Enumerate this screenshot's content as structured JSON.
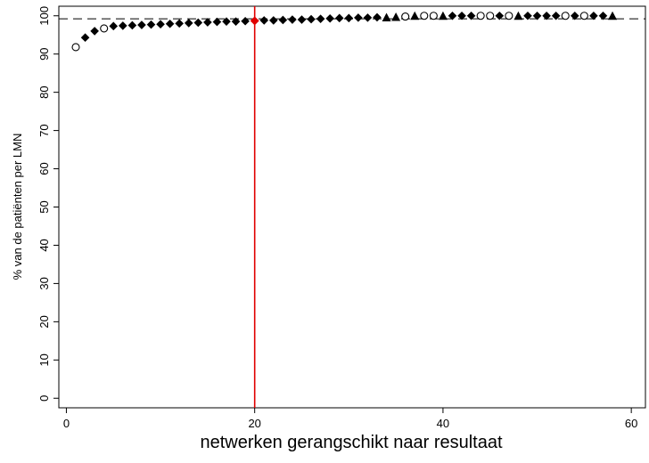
{
  "chart_data": {
    "type": "scatter",
    "title": "",
    "xlabel": "netwerken gerangschikt naar resultaat",
    "ylabel": "% van de patiënten per LMN",
    "xlim": [
      -0.8,
      61.5
    ],
    "ylim": [
      -2.5,
      102.5
    ],
    "x_ticks": [
      0,
      20,
      40,
      60
    ],
    "y_ticks": [
      0,
      10,
      20,
      30,
      40,
      50,
      60,
      70,
      80,
      90,
      100
    ],
    "grid": false,
    "legend": "none",
    "reference_line": {
      "axis": "y",
      "value": 99.2,
      "style": "dashed",
      "color": "#000000"
    },
    "highlight_line": {
      "axis": "x",
      "value": 20,
      "color": "#e00000"
    },
    "points": [
      {
        "x": 1,
        "y": 91.8,
        "m": "open"
      },
      {
        "x": 2,
        "y": 94.3,
        "m": "diamond"
      },
      {
        "x": 3,
        "y": 96.0,
        "m": "diamond"
      },
      {
        "x": 4,
        "y": 96.7,
        "m": "open"
      },
      {
        "x": 5,
        "y": 97.3,
        "m": "diamond"
      },
      {
        "x": 6,
        "y": 97.4,
        "m": "diamond"
      },
      {
        "x": 7,
        "y": 97.5,
        "m": "diamond"
      },
      {
        "x": 8,
        "y": 97.6,
        "m": "diamond"
      },
      {
        "x": 9,
        "y": 97.7,
        "m": "diamond"
      },
      {
        "x": 10,
        "y": 97.8,
        "m": "diamond"
      },
      {
        "x": 11,
        "y": 97.9,
        "m": "diamond"
      },
      {
        "x": 12,
        "y": 98.0,
        "m": "diamond"
      },
      {
        "x": 13,
        "y": 98.1,
        "m": "diamond"
      },
      {
        "x": 14,
        "y": 98.2,
        "m": "diamond"
      },
      {
        "x": 15,
        "y": 98.3,
        "m": "diamond"
      },
      {
        "x": 16,
        "y": 98.4,
        "m": "diamond"
      },
      {
        "x": 17,
        "y": 98.5,
        "m": "diamond"
      },
      {
        "x": 18,
        "y": 98.5,
        "m": "diamond"
      },
      {
        "x": 19,
        "y": 98.6,
        "m": "diamond"
      },
      {
        "x": 20,
        "y": 98.7,
        "m": "highlight"
      },
      {
        "x": 21,
        "y": 98.8,
        "m": "diamond"
      },
      {
        "x": 22,
        "y": 98.8,
        "m": "diamond"
      },
      {
        "x": 23,
        "y": 98.9,
        "m": "diamond"
      },
      {
        "x": 24,
        "y": 99.0,
        "m": "diamond"
      },
      {
        "x": 25,
        "y": 99.0,
        "m": "diamond"
      },
      {
        "x": 26,
        "y": 99.1,
        "m": "diamond"
      },
      {
        "x": 27,
        "y": 99.2,
        "m": "diamond"
      },
      {
        "x": 28,
        "y": 99.3,
        "m": "diamond"
      },
      {
        "x": 29,
        "y": 99.4,
        "m": "diamond"
      },
      {
        "x": 30,
        "y": 99.4,
        "m": "diamond"
      },
      {
        "x": 31,
        "y": 99.5,
        "m": "diamond"
      },
      {
        "x": 32,
        "y": 99.5,
        "m": "diamond"
      },
      {
        "x": 33,
        "y": 99.6,
        "m": "diamond"
      },
      {
        "x": 34,
        "y": 99.6,
        "m": "triangle"
      },
      {
        "x": 35,
        "y": 99.7,
        "m": "triangle"
      },
      {
        "x": 36,
        "y": 99.8,
        "m": "open"
      },
      {
        "x": 37,
        "y": 100.0,
        "m": "triangle"
      },
      {
        "x": 38,
        "y": 100.0,
        "m": "open"
      },
      {
        "x": 39,
        "y": 100.0,
        "m": "open"
      },
      {
        "x": 40,
        "y": 100.0,
        "m": "triangle"
      },
      {
        "x": 41,
        "y": 100.0,
        "m": "diamond"
      },
      {
        "x": 42,
        "y": 100.0,
        "m": "diamond"
      },
      {
        "x": 43,
        "y": 100.0,
        "m": "diamond"
      },
      {
        "x": 44,
        "y": 100.0,
        "m": "open"
      },
      {
        "x": 45,
        "y": 100.0,
        "m": "open"
      },
      {
        "x": 46,
        "y": 100.0,
        "m": "diamond"
      },
      {
        "x": 47,
        "y": 100.0,
        "m": "open"
      },
      {
        "x": 48,
        "y": 100.0,
        "m": "triangle"
      },
      {
        "x": 49,
        "y": 100.0,
        "m": "diamond"
      },
      {
        "x": 50,
        "y": 100.0,
        "m": "diamond"
      },
      {
        "x": 51,
        "y": 100.0,
        "m": "diamond"
      },
      {
        "x": 52,
        "y": 100.0,
        "m": "diamond"
      },
      {
        "x": 53,
        "y": 100.0,
        "m": "open"
      },
      {
        "x": 54,
        "y": 100.0,
        "m": "diamond"
      },
      {
        "x": 55,
        "y": 100.0,
        "m": "open"
      },
      {
        "x": 56,
        "y": 100.0,
        "m": "diamond"
      },
      {
        "x": 57,
        "y": 100.0,
        "m": "diamond"
      },
      {
        "x": 58,
        "y": 100.0,
        "m": "triangle"
      }
    ]
  }
}
